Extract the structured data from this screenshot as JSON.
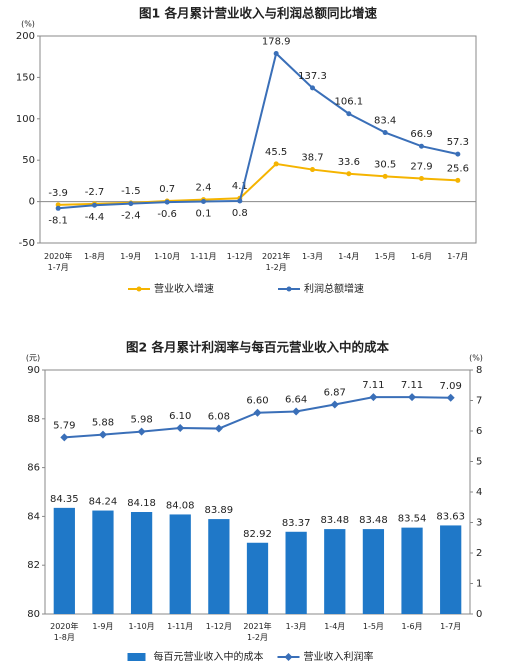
{
  "chart_data": [
    {
      "type": "line",
      "title": "图1 各月累计营业收入与利润总额同比增速",
      "ylabel": "(%)",
      "categories": [
        "2020年\n1-7月",
        "1-8月",
        "1-9月",
        "1-10月",
        "1-11月",
        "1-12月",
        "2021年\n1-2月",
        "1-3月",
        "1-4月",
        "1-5月",
        "1-6月",
        "1-7月"
      ],
      "series": [
        {
          "name": "营业收入增速",
          "color": "#f5b400",
          "values": [
            -3.9,
            -2.7,
            -1.5,
            0.7,
            2.4,
            4.1,
            45.5,
            38.7,
            33.6,
            30.5,
            27.9,
            25.6
          ]
        },
        {
          "name": "利润总额增速",
          "color": "#3a6fb8",
          "values": [
            -8.1,
            -4.4,
            -2.4,
            -0.6,
            0.1,
            0.8,
            178.9,
            137.3,
            106.1,
            83.4,
            66.9,
            57.3
          ]
        }
      ],
      "ylim": [
        -50,
        200
      ],
      "yticks": [
        -50,
        0,
        50,
        100,
        150,
        200
      ],
      "grid": false
    },
    {
      "type": "bar",
      "title": "图2 各月累计利润率与每百元营业收入中的成本",
      "ylabel": "(元)",
      "y2label": "(%)",
      "categories": [
        "2020年\n1-8月",
        "1-9月",
        "1-10月",
        "1-11月",
        "1-12月",
        "2021年\n1-2月",
        "1-3月",
        "1-4月",
        "1-5月",
        "1-6月",
        "1-7月"
      ],
      "series": [
        {
          "name": "每百元营业收入中的成本",
          "color": "#1f78c8",
          "type": "bar",
          "values": [
            84.35,
            84.24,
            84.18,
            84.08,
            83.89,
            82.92,
            83.37,
            83.48,
            83.48,
            83.54,
            83.63
          ]
        },
        {
          "name": "营业收入利润率",
          "color": "#3a6fb8",
          "type": "line",
          "axis": "y2",
          "values": [
            5.79,
            5.88,
            5.98,
            6.1,
            6.08,
            6.6,
            6.64,
            6.87,
            7.11,
            7.11,
            7.09
          ],
          "value_labels": [
            "5.79",
            "5.88",
            "5.98",
            "6.10",
            "6.08",
            "6.60",
            "6.64",
            "6.87",
            "7.11",
            "7.11",
            "7.09"
          ]
        }
      ],
      "ylim": [
        80,
        90
      ],
      "yticks": [
        80,
        82,
        84,
        86,
        88,
        90
      ],
      "y2lim": [
        0,
        8
      ],
      "y2ticks": [
        0,
        1,
        2,
        3,
        4,
        5,
        6,
        7,
        8
      ],
      "grid": false
    }
  ]
}
